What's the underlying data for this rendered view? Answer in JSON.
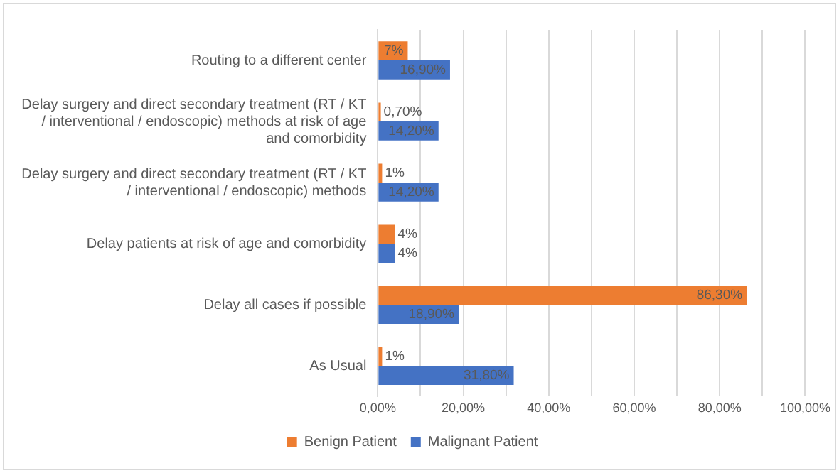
{
  "chart_data": {
    "type": "bar",
    "orientation": "horizontal",
    "categories": [
      "Routing to a different center",
      "Delay surgery and direct secondary treatment (RT / KT / interventional / endoscopic) methods at risk of age and comorbidity",
      "Delay surgery and direct secondary treatment (RT / KT / interventional / endoscopic) methods",
      "Delay patients at risk of age and comorbidity",
      "Delay all cases if possible",
      "As Usual"
    ],
    "series": [
      {
        "name": "Benign Patient",
        "color": "#ed7d31",
        "values": [
          7,
          0.7,
          1,
          4,
          86.3,
          1
        ],
        "value_labels": [
          "7%",
          "0,70%",
          "1%",
          "4%",
          "86,30%",
          "1%"
        ]
      },
      {
        "name": "Malignant Patient",
        "color": "#4472c4",
        "values": [
          16.9,
          14.2,
          14.2,
          4,
          18.9,
          31.8
        ],
        "value_labels": [
          "16,90%",
          "14,20%",
          "14,20%",
          "4%",
          "18,90%",
          "31,80%"
        ]
      }
    ],
    "xlim": [
      0,
      100
    ],
    "xticks": [
      {
        "value": 0,
        "label": "0,00%"
      },
      {
        "value": 10,
        "label": null
      },
      {
        "value": 20,
        "label": "20,00%"
      },
      {
        "value": 30,
        "label": null
      },
      {
        "value": 40,
        "label": "40,00%"
      },
      {
        "value": 50,
        "label": null
      },
      {
        "value": 60,
        "label": "60,00%"
      },
      {
        "value": 70,
        "label": null
      },
      {
        "value": 80,
        "label": "80,00%"
      },
      {
        "value": 90,
        "label": null
      },
      {
        "value": 100,
        "label": "100,00%"
      }
    ],
    "grid": "x",
    "legend": "bottom"
  }
}
